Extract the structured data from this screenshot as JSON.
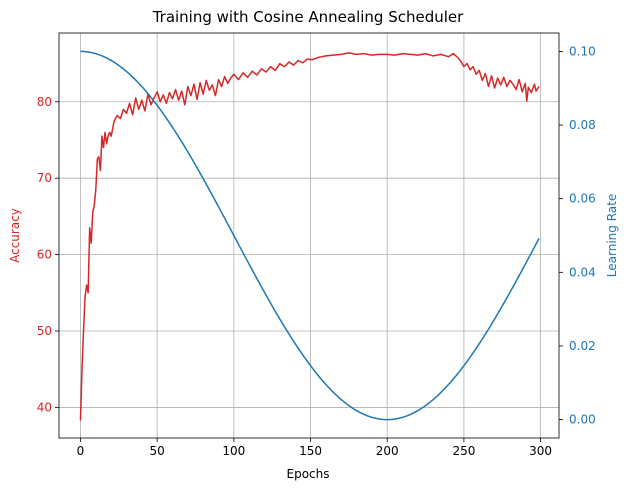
{
  "chart_data": {
    "type": "line",
    "title": "Training with Cosine Annealing Scheduler",
    "xlabel": "Epochs",
    "y_left_label": "Accuracy",
    "y_right_label": "Learning Rate",
    "xlim": [
      -14,
      312
    ],
    "ylim_left": [
      36,
      89
    ],
    "ylim_right": [
      -0.005,
      0.105
    ],
    "x_ticks": [
      0,
      50,
      100,
      150,
      200,
      250,
      300
    ],
    "y_left_ticks": [
      40,
      50,
      60,
      70,
      80
    ],
    "y_right_ticks": [
      "0.00",
      "0.02",
      "0.04",
      "0.06",
      "0.08",
      "0.10"
    ],
    "grid": true,
    "colors": {
      "accuracy": "#d62728",
      "learning_rate": "#1f77b4"
    },
    "series": [
      {
        "axis": "left",
        "points": [
          [
            0,
            38.3
          ],
          [
            1,
            45
          ],
          [
            2,
            50
          ],
          [
            3,
            54.5
          ],
          [
            4,
            56
          ],
          [
            5,
            55
          ],
          [
            6,
            63.5
          ],
          [
            7,
            61.5
          ],
          [
            8,
            65.5
          ],
          [
            9,
            66.5
          ],
          [
            10,
            68.5
          ],
          [
            11,
            72.5
          ],
          [
            12,
            72.8
          ],
          [
            13,
            71
          ],
          [
            14,
            75.5
          ],
          [
            15,
            74
          ],
          [
            16,
            76
          ],
          [
            17,
            74.5
          ],
          [
            18,
            75.5
          ],
          [
            19,
            76
          ],
          [
            20,
            75.5
          ],
          [
            22,
            77.5
          ],
          [
            24,
            78.2
          ],
          [
            26,
            77.8
          ],
          [
            28,
            79
          ],
          [
            30,
            78.5
          ],
          [
            32,
            79.8
          ],
          [
            34,
            78.3
          ],
          [
            36,
            80.5
          ],
          [
            38,
            79
          ],
          [
            40,
            80.2
          ],
          [
            42,
            78.8
          ],
          [
            44,
            81
          ],
          [
            46,
            79.6
          ],
          [
            48,
            80.5
          ],
          [
            50,
            81.3
          ],
          [
            52,
            80
          ],
          [
            54,
            80.9
          ],
          [
            56,
            79.8
          ],
          [
            58,
            81.2
          ],
          [
            60,
            80.4
          ],
          [
            62,
            81.6
          ],
          [
            64,
            80.2
          ],
          [
            66,
            81.4
          ],
          [
            68,
            79.6
          ],
          [
            70,
            82
          ],
          [
            72,
            80.8
          ],
          [
            74,
            82.3
          ],
          [
            76,
            80.3
          ],
          [
            78,
            82.5
          ],
          [
            80,
            81
          ],
          [
            82,
            82.8
          ],
          [
            84,
            81.5
          ],
          [
            86,
            82.2
          ],
          [
            88,
            80.8
          ],
          [
            90,
            82.9
          ],
          [
            92,
            82
          ],
          [
            94,
            83.3
          ],
          [
            96,
            82.4
          ],
          [
            98,
            83.1
          ],
          [
            100,
            83.6
          ],
          [
            103,
            82.9
          ],
          [
            106,
            83.8
          ],
          [
            109,
            83.2
          ],
          [
            112,
            84
          ],
          [
            115,
            83.5
          ],
          [
            118,
            84.3
          ],
          [
            121,
            83.9
          ],
          [
            124,
            84.6
          ],
          [
            127,
            84.1
          ],
          [
            130,
            85
          ],
          [
            133,
            84.6
          ],
          [
            136,
            85.2
          ],
          [
            139,
            84.8
          ],
          [
            142,
            85.4
          ],
          [
            145,
            85.1
          ],
          [
            148,
            85.6
          ],
          [
            151,
            85.5
          ],
          [
            155,
            85.8
          ],
          [
            160,
            86
          ],
          [
            165,
            86.1
          ],
          [
            170,
            86.2
          ],
          [
            175,
            86.4
          ],
          [
            180,
            86.2
          ],
          [
            185,
            86.3
          ],
          [
            190,
            86.1
          ],
          [
            195,
            86.2
          ],
          [
            200,
            86.2
          ],
          [
            205,
            86.1
          ],
          [
            210,
            86.3
          ],
          [
            215,
            86.2
          ],
          [
            220,
            86.1
          ],
          [
            225,
            86.3
          ],
          [
            230,
            86
          ],
          [
            235,
            86.2
          ],
          [
            240,
            85.9
          ],
          [
            243,
            86.3
          ],
          [
            246,
            85.8
          ],
          [
            248,
            85.3
          ],
          [
            250,
            84.6
          ],
          [
            252,
            85
          ],
          [
            254,
            84.2
          ],
          [
            256,
            84.6
          ],
          [
            258,
            83.6
          ],
          [
            260,
            84.1
          ],
          [
            262,
            82.8
          ],
          [
            264,
            83.7
          ],
          [
            266,
            82
          ],
          [
            268,
            83.4
          ],
          [
            270,
            81.8
          ],
          [
            272,
            83.1
          ],
          [
            274,
            82.2
          ],
          [
            276,
            83.2
          ],
          [
            278,
            82
          ],
          [
            280,
            82.8
          ],
          [
            282,
            82.3
          ],
          [
            284,
            81.6
          ],
          [
            286,
            82.9
          ],
          [
            288,
            81.3
          ],
          [
            290,
            82.4
          ],
          [
            291,
            80.1
          ],
          [
            292,
            81.9
          ],
          [
            294,
            81.2
          ],
          [
            296,
            82.3
          ],
          [
            297,
            81.4
          ],
          [
            298,
            81.7
          ],
          [
            299,
            82
          ]
        ]
      },
      {
        "axis": "right",
        "function": "cosine",
        "lr_max": 0.1,
        "lr_min": 0,
        "period": 200,
        "x_range": [
          0,
          299
        ]
      }
    ]
  }
}
